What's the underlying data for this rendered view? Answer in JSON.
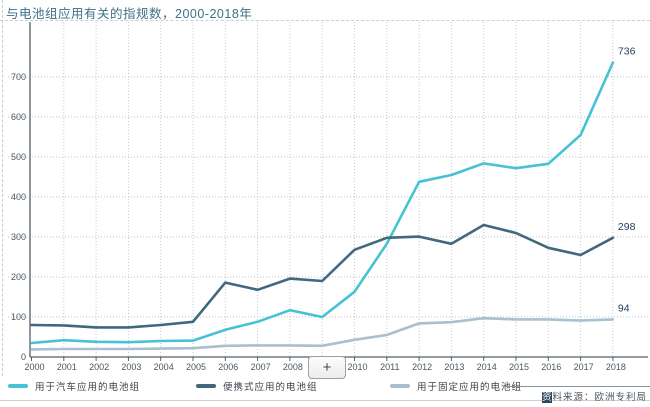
{
  "chart_data": {
    "type": "line",
    "title": "与电池组应用有关的指规数，2000-2018年",
    "x": [
      2000,
      2001,
      2002,
      2003,
      2004,
      2005,
      2006,
      2007,
      2008,
      2009,
      2010,
      2011,
      2012,
      2013,
      2014,
      2015,
      2016,
      2017,
      2018
    ],
    "series": [
      {
        "name": "用于汽车应用的电池组",
        "color": "#45c2d4",
        "values": [
          35,
          42,
          38,
          37,
          40,
          41,
          68,
          88,
          117,
          100,
          163,
          283,
          438,
          455,
          484,
          472,
          483,
          555,
          736
        ],
        "end_label": "736"
      },
      {
        "name": "便携式应用的电池组",
        "color": "#41687f",
        "values": [
          80,
          79,
          74,
          74,
          80,
          88,
          186,
          168,
          196,
          190,
          268,
          298,
          301,
          283,
          330,
          310,
          273,
          255,
          298
        ],
        "end_label": "298"
      },
      {
        "name": "用于固定应用的电池组",
        "color": "#a9c0ce",
        "values": [
          19,
          20,
          20,
          20,
          21,
          22,
          28,
          29,
          29,
          28,
          43,
          55,
          84,
          87,
          97,
          94,
          94,
          91,
          94
        ],
        "end_label": "94"
      }
    ],
    "yticks": [
      0,
      100,
      200,
      300,
      400,
      500,
      600,
      700
    ],
    "ylim": [
      0,
      700
    ],
    "xlabel": "",
    "ylabel": "",
    "grid": "dotted",
    "legend_position": "bottom"
  },
  "controls": {
    "zoom_button_label": "+"
  },
  "footer": {
    "source": "资料来源：欧洲专利局"
  }
}
